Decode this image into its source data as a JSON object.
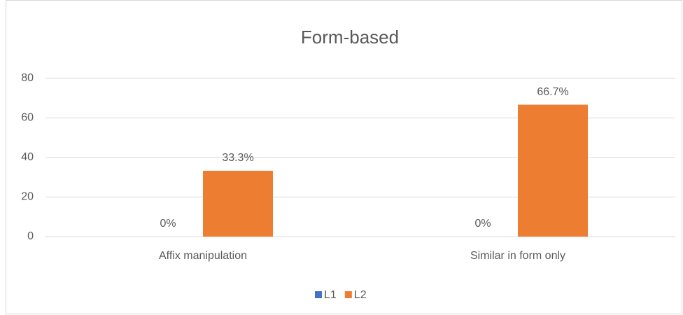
{
  "chart_data": {
    "type": "bar",
    "title": "Form-based",
    "categories": [
      "Affix manipulation",
      "Similar in form only"
    ],
    "series": [
      {
        "name": "L1",
        "color": "#4472c4",
        "values": [
          0,
          0
        ],
        "value_labels": [
          "0%",
          "0%"
        ]
      },
      {
        "name": "L2",
        "color": "#ed7d31",
        "values": [
          33.3,
          66.7
        ],
        "value_labels": [
          "33.3%",
          "66.7%"
        ]
      }
    ],
    "ylim": [
      0,
      80
    ],
    "yticks": [
      0,
      20,
      40,
      60,
      80
    ],
    "grid": true,
    "legend": "bottom"
  }
}
